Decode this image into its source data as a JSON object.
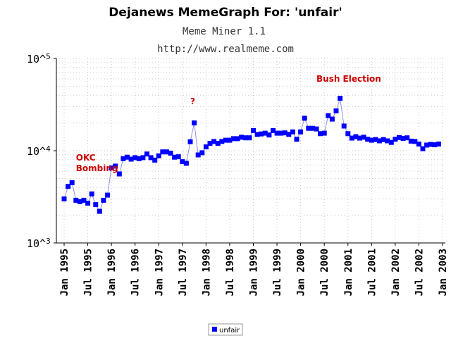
{
  "chart_data": {
    "type": "line",
    "title": "Dejanews MemeGraph For: 'unfair'",
    "subtitle": "Meme Miner 1.1",
    "url": "http://www.realmeme.com",
    "xlabel": "",
    "ylabel": "",
    "yscale": "log",
    "ylim": [
      1000,
      100000
    ],
    "yticks": [
      {
        "base": "10",
        "exp": "5",
        "value": 100000
      },
      {
        "base": "10",
        "exp": "4",
        "value": 10000
      },
      {
        "base": "10",
        "exp": "3",
        "value": 1000
      }
    ],
    "xlim": [
      "1995-01",
      "2003-01"
    ],
    "xtick_labels": [
      "Jan 1995",
      "Jul 1995",
      "Jan 1996",
      "Jul 1996",
      "Jan 1997",
      "Jul 1997",
      "Jan 1998",
      "Jul 1998",
      "Jan 1999",
      "Jul 1999",
      "Jan 2000",
      "Jul 2000",
      "Jan 2001",
      "Jul 2001",
      "Jan 2002",
      "Jul 2002",
      "Jan 2003"
    ],
    "grid": true,
    "legend_position": "bottom-center",
    "series": [
      {
        "name": "unfair",
        "color": "#0000ff",
        "x": [
          "1995-01",
          "1995-02",
          "1995-03",
          "1995-04",
          "1995-05",
          "1995-06",
          "1995-07",
          "1995-08",
          "1995-09",
          "1995-10",
          "1995-11",
          "1995-12",
          "1996-01",
          "1996-02",
          "1996-03",
          "1996-04",
          "1996-05",
          "1996-06",
          "1996-07",
          "1996-08",
          "1996-09",
          "1996-10",
          "1996-11",
          "1996-12",
          "1997-01",
          "1997-02",
          "1997-03",
          "1997-04",
          "1997-05",
          "1997-06",
          "1997-07",
          "1997-08",
          "1997-09",
          "1997-10",
          "1997-11",
          "1997-12",
          "1998-01",
          "1998-02",
          "1998-03",
          "1998-04",
          "1998-05",
          "1998-06",
          "1998-07",
          "1998-08",
          "1998-09",
          "1998-10",
          "1998-11",
          "1998-12",
          "1999-01",
          "1999-02",
          "1999-03",
          "1999-04",
          "1999-05",
          "1999-06",
          "1999-07",
          "1999-08",
          "1999-09",
          "1999-10",
          "1999-11",
          "1999-12",
          "2000-01",
          "2000-02",
          "2000-03",
          "2000-04",
          "2000-05",
          "2000-06",
          "2000-07",
          "2000-08",
          "2000-09",
          "2000-10",
          "2000-11",
          "2000-12",
          "2001-01",
          "2001-02",
          "2001-03",
          "2001-04",
          "2001-05",
          "2001-06",
          "2001-07",
          "2001-08",
          "2001-09",
          "2001-10",
          "2001-11",
          "2001-12",
          "2002-01",
          "2002-02",
          "2002-03",
          "2002-04",
          "2002-05",
          "2002-06",
          "2002-07",
          "2002-08",
          "2002-09",
          "2002-10",
          "2002-11",
          "2002-12"
        ],
        "values": [
          3000,
          4100,
          4500,
          2900,
          2800,
          2900,
          2700,
          3400,
          2600,
          2200,
          2900,
          3300,
          6500,
          6800,
          5600,
          8200,
          8500,
          8100,
          8400,
          8200,
          8400,
          9200,
          8400,
          7900,
          8800,
          9700,
          9700,
          9400,
          8500,
          8600,
          7600,
          7300,
          12500,
          20000,
          9000,
          9500,
          11000,
          12000,
          12600,
          12000,
          12600,
          13000,
          13000,
          13500,
          13500,
          14000,
          13800,
          13800,
          16500,
          15000,
          15200,
          15500,
          14800,
          16500,
          15500,
          15500,
          15600,
          15000,
          16000,
          13300,
          16000,
          22500,
          17500,
          17500,
          17200,
          15300,
          15500,
          24000,
          22000,
          27000,
          37000,
          18500,
          15300,
          13700,
          14200,
          13700,
          14000,
          13300,
          13000,
          13200,
          12800,
          13200,
          12800,
          12300,
          13300,
          13900,
          13600,
          13800,
          12700,
          12600,
          11800,
          10500,
          11500,
          11700,
          11600,
          11800
        ]
      }
    ],
    "annotations": [
      {
        "lines": [
          "OKC",
          "Bombing"
        ],
        "x": "1995-04",
        "y": 7800
      },
      {
        "lines": [
          "?"
        ],
        "x": "1997-09",
        "y": 32000
      },
      {
        "lines": [
          "Bush Election"
        ],
        "x": "2000-05",
        "y": 56000
      }
    ]
  }
}
